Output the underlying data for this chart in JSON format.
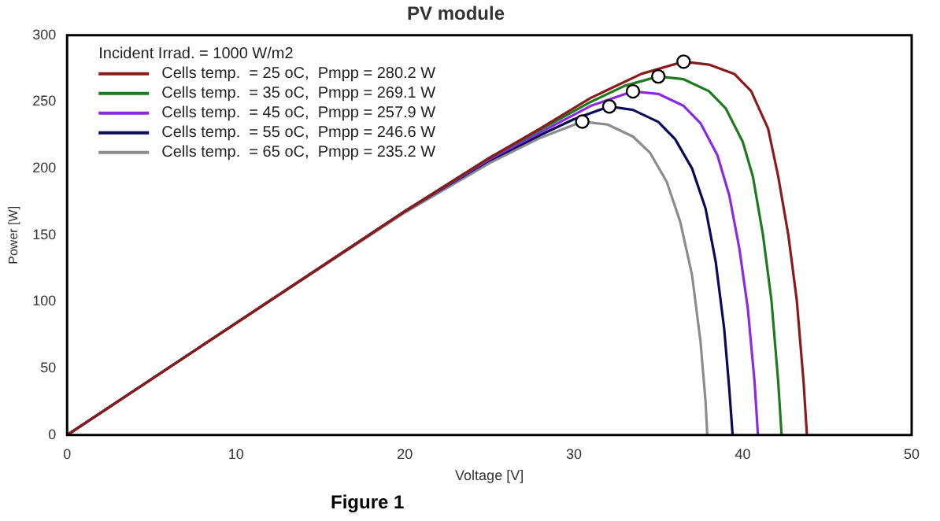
{
  "chart_data": {
    "type": "line",
    "title": "PV module",
    "xlabel": "Voltage [V]",
    "ylabel": "Power [W]",
    "legend_title": "Incident Irrad. = 1000 W/m2",
    "legend": "top left",
    "grid": false,
    "marker": "none",
    "line_style": "solid",
    "xlim": [
      0,
      50
    ],
    "xticks": [
      0,
      10,
      20,
      30,
      40,
      50
    ],
    "ylim": [
      0,
      300
    ],
    "yticks": [
      0,
      50,
      100,
      150,
      200,
      250,
      300
    ],
    "annotations": [
      "Figure 1"
    ],
    "series": [
      {
        "name": "Cells temp.  = 25 oC,  Pmpp = 280.2 W",
        "color": "#8b1a1a",
        "x": [
          0,
          10,
          20,
          25,
          28,
          31,
          34,
          36.5,
          38,
          39.5,
          40.5,
          41.5,
          42.1,
          42.7,
          43.2,
          43.6,
          43.8
        ],
        "values": [
          0,
          84,
          168,
          208,
          230,
          253,
          271,
          280.2,
          278,
          271,
          258,
          230,
          194,
          150,
          101,
          40,
          0
        ]
      },
      {
        "name": "Cells temp.  = 35 oC,  Pmpp = 269.1 W",
        "color": "#1f7a1f",
        "x": [
          20,
          25,
          28,
          31,
          33,
          35,
          36.5,
          38,
          39,
          40,
          40.6,
          41.2,
          41.7,
          42.1,
          42.3
        ],
        "values": [
          168,
          208,
          229,
          250,
          262,
          269.1,
          267,
          258,
          245,
          220,
          194,
          150,
          101,
          40,
          0
        ]
      },
      {
        "name": "Cells temp.  = 45 oC,  Pmpp = 257.9 W",
        "color": "#8a2be2",
        "x": [
          20,
          25,
          28,
          31,
          33.5,
          35,
          36.5,
          37.5,
          38.5,
          39.2,
          39.8,
          40.3,
          40.7,
          40.9
        ],
        "values": [
          168,
          207,
          227,
          247,
          257.9,
          256,
          247,
          234,
          210,
          180,
          140,
          95,
          40,
          0
        ]
      },
      {
        "name": "Cells temp.  = 55 oC,  Pmpp = 246.6 W",
        "color": "#0a0a5a",
        "x": [
          0,
          10,
          20,
          25,
          28,
          30,
          32.1,
          33.5,
          35,
          36,
          37,
          37.8,
          38.4,
          38.9,
          39.2,
          39.4
        ],
        "values": [
          0,
          84,
          168,
          206,
          225,
          237,
          246.6,
          244,
          235,
          222,
          200,
          170,
          130,
          80,
          35,
          0
        ]
      },
      {
        "name": "Cells temp.  = 65 oC,  Pmpp = 235.2 W",
        "color": "#8c8c8c",
        "x": [
          0,
          10,
          20,
          25,
          28,
          30.5,
          32,
          33.5,
          34.5,
          35.5,
          36.3,
          37,
          37.5,
          37.8,
          37.9
        ],
        "values": [
          0,
          84,
          167,
          204,
          223,
          235.2,
          233,
          224,
          212,
          190,
          160,
          120,
          70,
          25,
          0
        ]
      },
      {
        "type": "scatter",
        "marker": "circle",
        "color": "#ffffff",
        "x": [
          36.5,
          35,
          33.5,
          32.1,
          30.5
        ],
        "values": [
          280.2,
          269.1,
          257.9,
          246.6,
          235.2
        ]
      }
    ]
  }
}
